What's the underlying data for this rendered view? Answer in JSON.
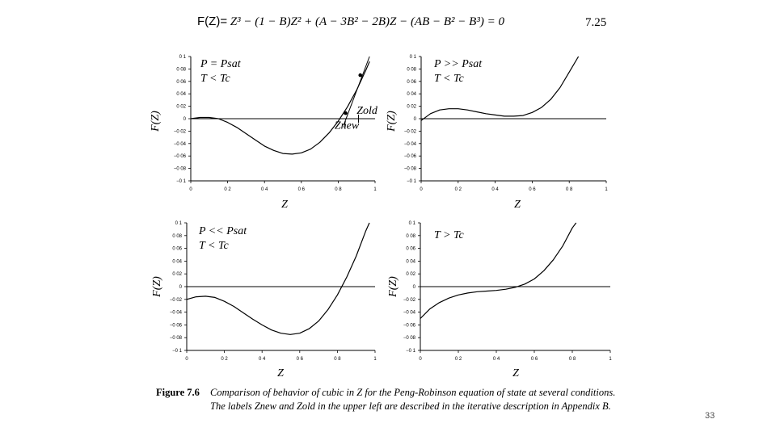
{
  "equation": {
    "lhs": "F(Z)=",
    "rhs": "Z³ − (1 − B)Z² + (A − 3B² − 2B)Z − (AB − B² − B³) = 0",
    "number": "7.25"
  },
  "caption": {
    "label": "Figure 7.6",
    "text": "Comparison of behavior of cubic in Z for the Peng-Robinson equation of state at several conditions. The labels Znew and Zold in the upper left are described in the iterative description in Appendix B."
  },
  "page_number": "33",
  "chart_data": [
    {
      "type": "line",
      "panel": "top-left",
      "xlabel": "Z",
      "ylabel": "F(Z)",
      "xlim": [
        0,
        1
      ],
      "ylim": [
        -0.1,
        0.1
      ],
      "xticks": [
        "0",
        "0 2",
        "0 4",
        "0 6",
        "0 8",
        "1"
      ],
      "yticks": [
        "0 1",
        "0 08",
        "0 06",
        "0 04",
        "0 02",
        "0",
        "−0 02",
        "−0 04",
        "−0 06",
        "−0 08",
        "−0 1"
      ],
      "conditions": [
        "P = Psat",
        "T < Tc"
      ],
      "annotations": [
        "Zold",
        "Znew"
      ],
      "x": [
        0,
        0.05,
        0.1,
        0.15,
        0.2,
        0.25,
        0.3,
        0.35,
        0.4,
        0.45,
        0.5,
        0.55,
        0.6,
        0.65,
        0.7,
        0.75,
        0.8,
        0.85,
        0.9,
        0.95,
        0.97
      ],
      "y": [
        0.0,
        0.002,
        0.002,
        0.0,
        -0.006,
        -0.014,
        -0.024,
        -0.034,
        -0.044,
        -0.051,
        -0.056,
        -0.057,
        -0.055,
        -0.049,
        -0.038,
        -0.023,
        -0.004,
        0.019,
        0.046,
        0.078,
        0.092
      ],
      "markers": [
        {
          "x": 0.84,
          "y": 0.009
        },
        {
          "x": 0.92,
          "y": 0.07
        }
      ]
    },
    {
      "type": "line",
      "panel": "top-right",
      "xlabel": "Z",
      "ylabel": "F(Z)",
      "xlim": [
        0,
        1
      ],
      "ylim": [
        -0.1,
        0.1
      ],
      "xticks": [
        "0",
        "0 2",
        "0 4",
        "0 6",
        "0 8",
        "1"
      ],
      "yticks": [
        "0 1",
        "0 08",
        "0 06",
        "0 04",
        "0 02",
        "0",
        "−0 02",
        "−0 04",
        "−0 06",
        "−0 08",
        "−0 1"
      ],
      "conditions": [
        "P >> Psat",
        "T < Tc"
      ],
      "x": [
        0,
        0.05,
        0.1,
        0.15,
        0.2,
        0.25,
        0.3,
        0.35,
        0.4,
        0.45,
        0.5,
        0.55,
        0.6,
        0.65,
        0.7,
        0.75,
        0.8,
        0.85
      ],
      "y": [
        -0.003,
        0.008,
        0.014,
        0.016,
        0.016,
        0.014,
        0.011,
        0.008,
        0.006,
        0.004,
        0.004,
        0.005,
        0.01,
        0.018,
        0.031,
        0.05,
        0.075,
        0.1
      ]
    },
    {
      "type": "line",
      "panel": "bottom-left",
      "xlabel": "Z",
      "ylabel": "F(Z)",
      "xlim": [
        0,
        1
      ],
      "ylim": [
        -0.1,
        0.1
      ],
      "xticks": [
        "0",
        "0 2",
        "0 4",
        "0 6",
        "0 8",
        "1"
      ],
      "yticks": [
        "0 1",
        "0 08",
        "0 06",
        "0 04",
        "0 02",
        "0",
        "−0 02",
        "−0 04",
        "−0 06",
        "−0 08",
        "−0 1"
      ],
      "conditions": [
        "P << Psat",
        "T < Tc"
      ],
      "x": [
        0,
        0.05,
        0.1,
        0.15,
        0.2,
        0.25,
        0.3,
        0.35,
        0.4,
        0.45,
        0.5,
        0.55,
        0.6,
        0.65,
        0.7,
        0.75,
        0.8,
        0.85,
        0.9,
        0.95,
        0.97
      ],
      "y": [
        -0.02,
        -0.016,
        -0.015,
        -0.017,
        -0.023,
        -0.031,
        -0.041,
        -0.051,
        -0.06,
        -0.068,
        -0.073,
        -0.075,
        -0.073,
        -0.066,
        -0.054,
        -0.036,
        -0.013,
        0.015,
        0.048,
        0.087,
        0.1
      ]
    },
    {
      "type": "line",
      "panel": "bottom-right",
      "xlabel": "Z",
      "ylabel": "F(Z)",
      "xlim": [
        0,
        1
      ],
      "ylim": [
        -0.1,
        0.1
      ],
      "xticks": [
        "0",
        "0 2",
        "0 4",
        "0 6",
        "0 8",
        "1"
      ],
      "yticks": [
        "0 1",
        "0 08",
        "0 06",
        "0 04",
        "0 02",
        "0",
        "−0 02",
        "−0 04",
        "−0 06",
        "−0 08",
        "−0 1"
      ],
      "conditions": [
        "T > Tc"
      ],
      "x": [
        0,
        0.05,
        0.1,
        0.15,
        0.2,
        0.25,
        0.3,
        0.35,
        0.4,
        0.45,
        0.5,
        0.55,
        0.6,
        0.65,
        0.7,
        0.75,
        0.8,
        0.82
      ],
      "y": [
        -0.05,
        -0.035,
        -0.025,
        -0.018,
        -0.013,
        -0.01,
        -0.008,
        -0.007,
        -0.006,
        -0.004,
        -0.001,
        0.004,
        0.012,
        0.025,
        0.042,
        0.064,
        0.092,
        0.1
      ]
    }
  ]
}
